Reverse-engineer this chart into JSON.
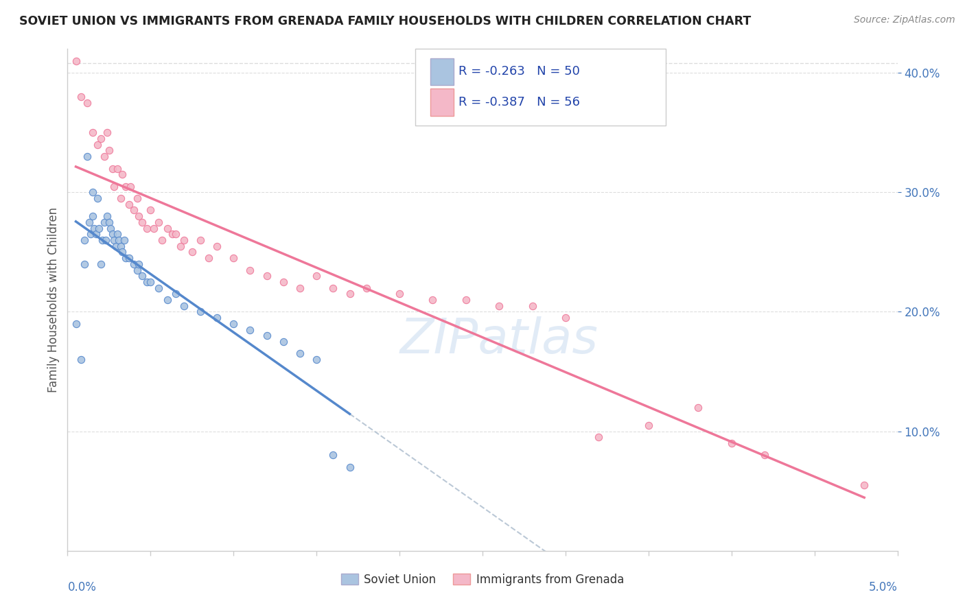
{
  "title": "SOVIET UNION VS IMMIGRANTS FROM GRENADA FAMILY HOUSEHOLDS WITH CHILDREN CORRELATION CHART",
  "source": "Source: ZipAtlas.com",
  "ylabel": "Family Households with Children",
  "color_soviet": "#aac4e0",
  "color_grenada": "#f4b8c8",
  "color_soviet_line": "#5588cc",
  "color_grenada_line": "#ee7799",
  "color_dashed": "#aabbcc",
  "xlim": [
    0.0,
    5.0
  ],
  "ylim": [
    0.0,
    42.0
  ],
  "yticks": [
    10.0,
    20.0,
    30.0,
    40.0
  ],
  "legend_r1": "-0.263",
  "legend_n1": "50",
  "legend_r2": "-0.387",
  "legend_n2": "56",
  "soviet_x": [
    0.05,
    0.08,
    0.1,
    0.1,
    0.12,
    0.13,
    0.14,
    0.15,
    0.15,
    0.16,
    0.17,
    0.18,
    0.19,
    0.2,
    0.21,
    0.22,
    0.23,
    0.24,
    0.25,
    0.26,
    0.27,
    0.28,
    0.29,
    0.3,
    0.31,
    0.32,
    0.33,
    0.34,
    0.35,
    0.37,
    0.4,
    0.42,
    0.43,
    0.45,
    0.48,
    0.5,
    0.55,
    0.6,
    0.65,
    0.7,
    0.8,
    0.9,
    1.0,
    1.1,
    1.2,
    1.3,
    1.4,
    1.5,
    1.6,
    1.7
  ],
  "soviet_y": [
    19.0,
    16.0,
    24.0,
    26.0,
    33.0,
    27.5,
    26.5,
    30.0,
    28.0,
    27.0,
    26.5,
    29.5,
    27.0,
    24.0,
    26.0,
    27.5,
    26.0,
    28.0,
    27.5,
    27.0,
    26.5,
    26.0,
    25.5,
    26.5,
    26.0,
    25.5,
    25.0,
    26.0,
    24.5,
    24.5,
    24.0,
    23.5,
    24.0,
    23.0,
    22.5,
    22.5,
    22.0,
    21.0,
    21.5,
    20.5,
    20.0,
    19.5,
    19.0,
    18.5,
    18.0,
    17.5,
    16.5,
    16.0,
    8.0,
    7.0
  ],
  "grenada_x": [
    0.05,
    0.08,
    0.12,
    0.15,
    0.18,
    0.2,
    0.22,
    0.24,
    0.25,
    0.27,
    0.28,
    0.3,
    0.32,
    0.33,
    0.35,
    0.37,
    0.38,
    0.4,
    0.42,
    0.43,
    0.45,
    0.48,
    0.5,
    0.52,
    0.55,
    0.57,
    0.6,
    0.63,
    0.65,
    0.68,
    0.7,
    0.75,
    0.8,
    0.85,
    0.9,
    1.0,
    1.1,
    1.2,
    1.3,
    1.4,
    1.5,
    1.6,
    1.7,
    1.8,
    2.0,
    2.2,
    2.4,
    2.6,
    2.8,
    3.0,
    3.2,
    3.5,
    3.8,
    4.0,
    4.2,
    4.8
  ],
  "grenada_y": [
    41.0,
    38.0,
    37.5,
    35.0,
    34.0,
    34.5,
    33.0,
    35.0,
    33.5,
    32.0,
    30.5,
    32.0,
    29.5,
    31.5,
    30.5,
    29.0,
    30.5,
    28.5,
    29.5,
    28.0,
    27.5,
    27.0,
    28.5,
    27.0,
    27.5,
    26.0,
    27.0,
    26.5,
    26.5,
    25.5,
    26.0,
    25.0,
    26.0,
    24.5,
    25.5,
    24.5,
    23.5,
    23.0,
    22.5,
    22.0,
    23.0,
    22.0,
    21.5,
    22.0,
    21.5,
    21.0,
    21.0,
    20.5,
    20.5,
    19.5,
    9.5,
    10.5,
    12.0,
    9.0,
    8.0,
    5.5
  ]
}
